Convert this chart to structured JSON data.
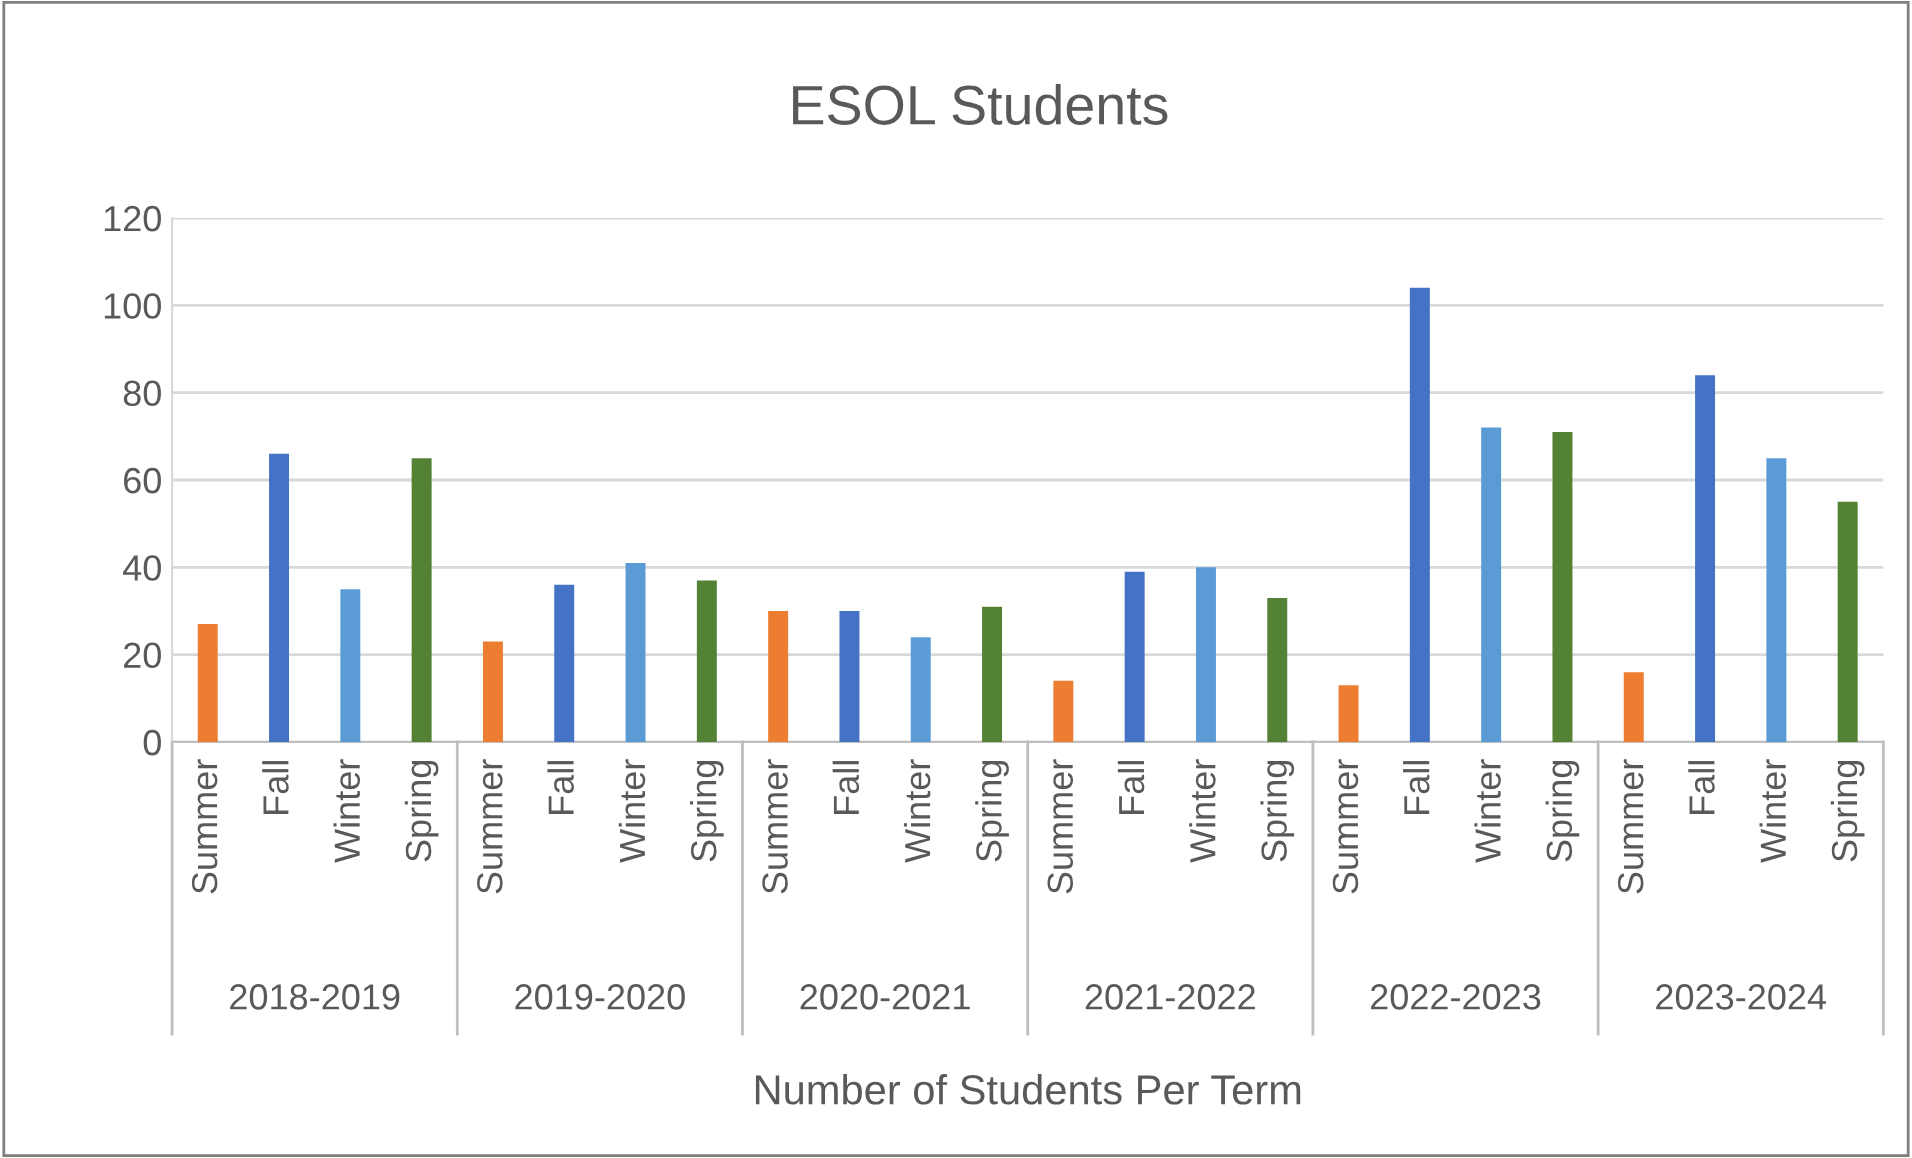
{
  "chart_data": {
    "type": "bar",
    "title": "ESOL Students",
    "xlabel": "Number of Students Per Term",
    "categories": [
      "Summer",
      "Fall",
      "Winter",
      "Spring",
      "Summer",
      "Fall",
      "Winter",
      "Spring",
      "Summer",
      "Fall",
      "Winter",
      "Spring",
      "Summer",
      "Fall",
      "Winter",
      "Spring",
      "Summer",
      "Fall",
      "Winter",
      "Spring",
      "Summer",
      "Fall",
      "Winter",
      "Spring"
    ],
    "values": [
      27,
      66,
      35,
      65,
      23,
      36,
      41,
      37,
      30,
      30,
      24,
      31,
      14,
      39,
      40,
      33,
      13,
      104,
      72,
      71,
      16,
      84,
      65,
      55
    ],
    "colors": [
      "#ed7d31",
      "#4472c4",
      "#5b9bd5",
      "#548235",
      "#ed7d31",
      "#4472c4",
      "#5b9bd5",
      "#548235",
      "#ed7d31",
      "#4472c4",
      "#5b9bd5",
      "#548235",
      "#ed7d31",
      "#4472c4",
      "#5b9bd5",
      "#548235",
      "#ed7d31",
      "#4472c4",
      "#5b9bd5",
      "#548235",
      "#ed7d31",
      "#4472c4",
      "#5b9bd5",
      "#548235"
    ],
    "annotations": [
      "2018-2019",
      "2019-2020",
      "2020-2021",
      "2021-2022",
      "2022-2023",
      "2023-2024"
    ],
    "ylim": [
      0,
      120
    ],
    "yticks": [
      0,
      20,
      40,
      60,
      80,
      100,
      120
    ],
    "grid": "y",
    "legend": false
  }
}
